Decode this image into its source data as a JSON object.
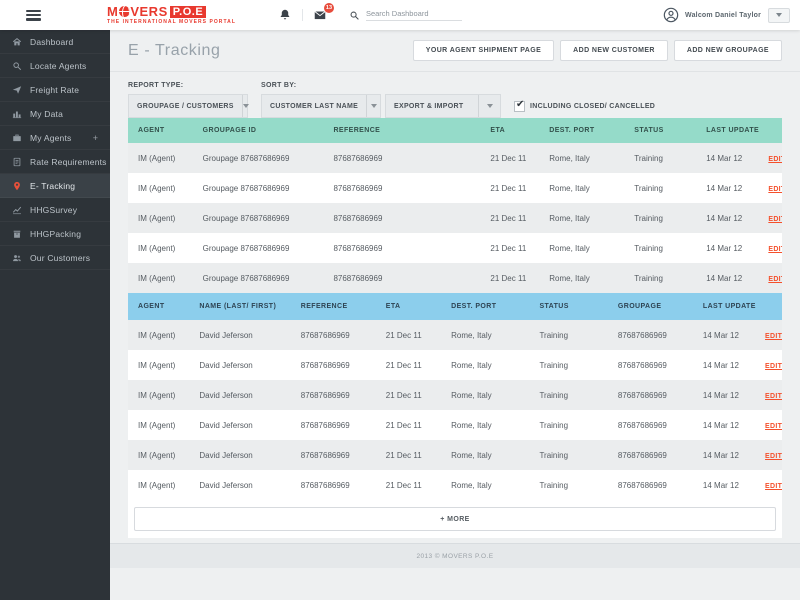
{
  "colors": {
    "brand_red": "#e8392e",
    "teal_header": "#95dbc9",
    "blue_header": "#8cceec",
    "edit_link": "#f4502c",
    "sidebar_bg": "#2d3338",
    "sidebar_active_bg": "#3a4147",
    "badge_red": "#e74c3c",
    "pin_red": "#e8503a"
  },
  "header": {
    "logo": {
      "prefix": "M",
      "suffix": "VERS",
      "box": "P.O.E",
      "tagline": "THE INTERNATIONAL MOVERS PORTAL"
    },
    "notification_badge": "13",
    "search_placeholder": "Search Dashboard",
    "user_name": "Walcom Daniel Taylor"
  },
  "sidebar": {
    "items": [
      {
        "label": "Dashboard",
        "icon": "home"
      },
      {
        "label": "Locate Agents",
        "icon": "search"
      },
      {
        "label": "Freight Rate",
        "icon": "plane"
      },
      {
        "label": "My Data",
        "icon": "bar-chart"
      },
      {
        "label": "My Agents",
        "icon": "briefcase",
        "suffix": "+"
      },
      {
        "label": "Rate Requirements",
        "icon": "document"
      },
      {
        "label": "E- Tracking",
        "icon": "map-pin",
        "active": true
      },
      {
        "label": "HHGSurvey",
        "icon": "line-chart"
      },
      {
        "label": "HHGPacking",
        "icon": "package"
      },
      {
        "label": "Our Customers",
        "icon": "users"
      }
    ]
  },
  "page": {
    "title": "E - Tracking",
    "actions": [
      "YOUR AGENT SHIPMENT PAGE",
      "ADD NEW CUSTOMER",
      "ADD NEW GROUPAGE"
    ]
  },
  "filters": {
    "report_type_label": "REPORT TYPE:",
    "report_type_value": "GROUPAGE / CUSTOMERS",
    "sort_by_label": "SORT BY:",
    "sort_by_value": "CUSTOMER LAST NAME",
    "export_import_value": "EXPORT & IMPORT",
    "checkbox_label": "INCLUDING CLOSED/ CANCELLED",
    "checkbox_checked": true
  },
  "groupage_table": {
    "columns": [
      "AGENT",
      "GROUPAGE ID",
      "REFERENCE",
      "ETA",
      "DEST. PORT",
      "STATUS",
      "LAST UPDATE"
    ],
    "edit_label": "EDIT",
    "rows": [
      {
        "agent": "IM (Agent)",
        "groupage_id": "Groupage 87687686969",
        "reference": "87687686969",
        "eta": "21 Dec 11",
        "dest_port": "Rome, Italy",
        "status": "Training",
        "last_update": "14 Mar 12"
      },
      {
        "agent": "IM (Agent)",
        "groupage_id": "Groupage 87687686969",
        "reference": "87687686969",
        "eta": "21 Dec 11",
        "dest_port": "Rome, Italy",
        "status": "Training",
        "last_update": "14 Mar 12"
      },
      {
        "agent": "IM (Agent)",
        "groupage_id": "Groupage 87687686969",
        "reference": "87687686969",
        "eta": "21 Dec 11",
        "dest_port": "Rome, Italy",
        "status": "Training",
        "last_update": "14 Mar 12"
      },
      {
        "agent": "IM (Agent)",
        "groupage_id": "Groupage 87687686969",
        "reference": "87687686969",
        "eta": "21 Dec 11",
        "dest_port": "Rome, Italy",
        "status": "Training",
        "last_update": "14 Mar 12"
      },
      {
        "agent": "IM (Agent)",
        "groupage_id": "Groupage 87687686969",
        "reference": "87687686969",
        "eta": "21 Dec 11",
        "dest_port": "Rome, Italy",
        "status": "Training",
        "last_update": "14 Mar 12"
      }
    ]
  },
  "customers_table": {
    "columns": [
      "AGENT",
      "NAME (LAST/ FIRST)",
      "REFERENCE",
      "ETA",
      "DEST. PORT",
      "STATUS",
      "GROUPAGE",
      "LAST UPDATE"
    ],
    "edit_label": "EDIT",
    "more_label": "+ MORE",
    "rows": [
      {
        "agent": "IM (Agent)",
        "name": "David Jeferson",
        "reference": "87687686969",
        "eta": "21 Dec 11",
        "dest_port": "Rome, Italy",
        "status": "Training",
        "groupage": "87687686969",
        "last_update": "14 Mar 12"
      },
      {
        "agent": "IM (Agent)",
        "name": "David Jeferson",
        "reference": "87687686969",
        "eta": "21 Dec 11",
        "dest_port": "Rome, Italy",
        "status": "Training",
        "groupage": "87687686969",
        "last_update": "14 Mar 12"
      },
      {
        "agent": "IM (Agent)",
        "name": "David Jeferson",
        "reference": "87687686969",
        "eta": "21 Dec 11",
        "dest_port": "Rome, Italy",
        "status": "Training",
        "groupage": "87687686969",
        "last_update": "14 Mar 12"
      },
      {
        "agent": "IM (Agent)",
        "name": "David Jeferson",
        "reference": "87687686969",
        "eta": "21 Dec 11",
        "dest_port": "Rome, Italy",
        "status": "Training",
        "groupage": "87687686969",
        "last_update": "14 Mar 12"
      },
      {
        "agent": "IM (Agent)",
        "name": "David Jeferson",
        "reference": "87687686969",
        "eta": "21 Dec 11",
        "dest_port": "Rome, Italy",
        "status": "Training",
        "groupage": "87687686969",
        "last_update": "14 Mar 12"
      },
      {
        "agent": "IM (Agent)",
        "name": "David Jeferson",
        "reference": "87687686969",
        "eta": "21 Dec 11",
        "dest_port": "Rome, Italy",
        "status": "Training",
        "groupage": "87687686969",
        "last_update": "14 Mar 12"
      }
    ]
  },
  "footer": {
    "copyright": "2013 © MOVERS P.O.E"
  }
}
